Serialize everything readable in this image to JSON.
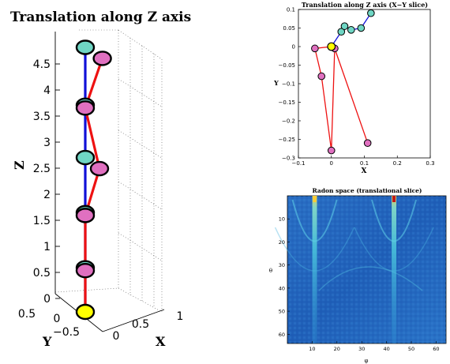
{
  "colors": {
    "blue_chain": "#1010d8",
    "red_chain": "#ee1111",
    "cyan_marker": "#6fd6c4",
    "pink_marker": "#e070c0",
    "yellow_marker": "#ffff00",
    "axis": "#000000"
  },
  "chart_data": [
    {
      "type": "scatter3d",
      "title": "Translation along Z axis",
      "xlabel": "X",
      "ylabel": "Y",
      "zlabel": "Z",
      "xticks": [
        "0",
        "0.5",
        "1"
      ],
      "yticks": [
        "−0.5",
        "0",
        "0.5"
      ],
      "zticks": [
        "0",
        "0.5",
        "1",
        "1.5",
        "2",
        "2.5",
        "3",
        "3.5",
        "4",
        "4.5"
      ],
      "zlim": [
        0,
        4.8
      ],
      "grid": true,
      "series": [
        {
          "color": "blue",
          "marker": "cyan",
          "points": [
            {
              "x": 0,
              "y": 0,
              "z": 0
            },
            {
              "x": 0,
              "y": 0,
              "z": 0.8
            },
            {
              "x": 0,
              "y": 0,
              "z": 1.8
            },
            {
              "x": 0,
              "y": 0,
              "z": 2.8
            },
            {
              "x": 0,
              "y": 0,
              "z": 3.75
            },
            {
              "x": 0,
              "y": 0,
              "z": 4.8
            }
          ]
        },
        {
          "color": "red",
          "marker": "pink",
          "points": [
            {
              "x": 0,
              "y": 0,
              "z": 0
            },
            {
              "x": 0,
              "y": 0,
              "z": 0.75
            },
            {
              "x": 0,
              "y": 0,
              "z": 1.75
            },
            {
              "x": 0.1,
              "y": 0,
              "z": 2.6
            },
            {
              "x": 0,
              "y": 0,
              "z": 3.7
            },
            {
              "x": 0.12,
              "y": 0,
              "z": 4.6
            }
          ]
        }
      ],
      "origin": {
        "x": 0,
        "y": 0,
        "z": 0
      }
    },
    {
      "type": "scatter",
      "title": "Translation along Z axis (X−Y slice)",
      "xlabel": "X",
      "ylabel": "Y",
      "xlim": [
        -0.1,
        0.3
      ],
      "ylim": [
        -0.3,
        0.1
      ],
      "xticks": [
        "−0.1",
        "0",
        "0.1",
        "0.2",
        "0.3"
      ],
      "yticks": [
        "0.1",
        "0.05",
        "0",
        "−0.05",
        "−0.1",
        "−0.15",
        "−0.2",
        "−0.25",
        "−0.3"
      ],
      "series": [
        {
          "color": "blue",
          "marker": "cyan",
          "points": [
            {
              "x": 0,
              "y": 0
            },
            {
              "x": 0.03,
              "y": 0.04
            },
            {
              "x": 0.04,
              "y": 0.055
            },
            {
              "x": 0.06,
              "y": 0.045
            },
            {
              "x": 0.09,
              "y": 0.05
            },
            {
              "x": 0.12,
              "y": 0.09
            }
          ]
        },
        {
          "color": "red",
          "marker": "pink",
          "points": [
            {
              "x": 0,
              "y": 0
            },
            {
              "x": -0.05,
              "y": -0.005
            },
            {
              "x": -0.03,
              "y": -0.08
            },
            {
              "x": 0,
              "y": -0.28
            },
            {
              "x": 0.01,
              "y": -0.005
            },
            {
              "x": 0.11,
              "y": -0.26
            }
          ]
        }
      ],
      "origin": {
        "x": 0,
        "y": 0
      }
    },
    {
      "type": "heatmap",
      "title": "Radon space (translational slice)",
      "xlabel": "φ",
      "ylabel": "θ",
      "xlim": [
        0,
        64
      ],
      "ylim": [
        0,
        64
      ],
      "xticks": [
        "10",
        "20",
        "30",
        "40",
        "50",
        "60"
      ],
      "yticks": [
        "10",
        "20",
        "30",
        "40",
        "50",
        "60"
      ],
      "colormap": "jet",
      "bright_columns_phi": [
        11,
        43
      ]
    }
  ]
}
